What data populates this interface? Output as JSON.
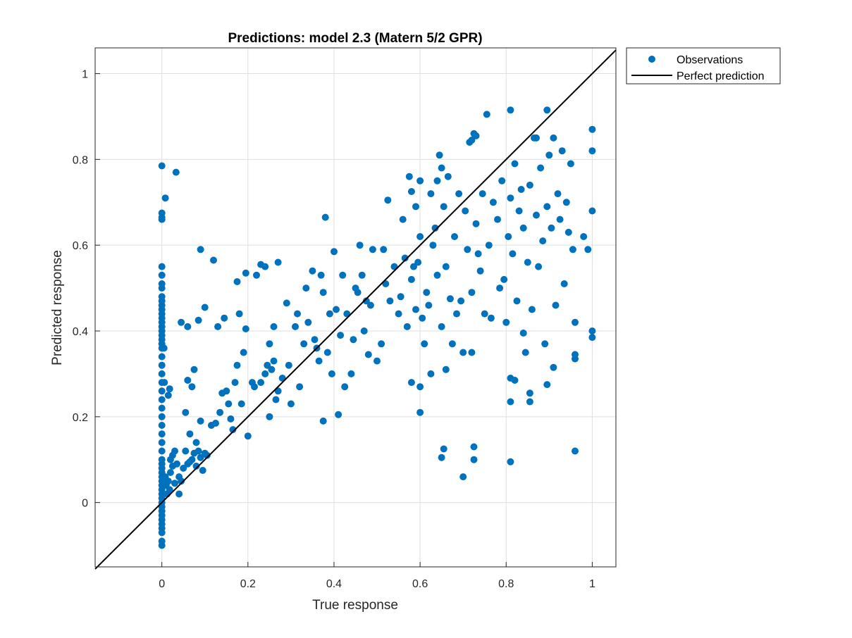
{
  "chart_data": {
    "type": "scatter",
    "title": "Predictions: model 2.3 (Matern 5/2 GPR)",
    "xlabel": "True response",
    "ylabel": "Predicted response",
    "xlim": [
      -0.155,
      1.055
    ],
    "ylim": [
      -0.15,
      1.06
    ],
    "xticks": [
      "0",
      "0.2",
      "0.4",
      "0.6",
      "0.8",
      "1"
    ],
    "yticks": [
      "0",
      "0.2",
      "0.4",
      "0.6",
      "0.8",
      "1"
    ],
    "grid": true,
    "legend_position": "outside-top-right",
    "colors": {
      "observations": "#0072BD",
      "perfect_prediction": "#000000"
    },
    "series": [
      {
        "name": "Observations",
        "kind": "scatter",
        "points": [
          [
            0,
            0.785
          ],
          [
            0,
            0.675
          ],
          [
            0,
            0.665
          ],
          [
            0,
            0.66
          ],
          [
            0.008,
            0.71
          ],
          [
            0.033,
            0.77
          ],
          [
            0,
            0.55
          ],
          [
            0,
            0.53
          ],
          [
            0,
            0.51
          ],
          [
            0,
            0.5
          ],
          [
            0,
            0.48
          ],
          [
            0,
            0.47
          ],
          [
            0,
            0.46
          ],
          [
            0,
            0.45
          ],
          [
            0,
            0.44
          ],
          [
            0,
            0.43
          ],
          [
            0,
            0.42
          ],
          [
            0,
            0.41
          ],
          [
            0,
            0.4
          ],
          [
            0,
            0.39
          ],
          [
            0,
            0.38
          ],
          [
            0,
            0.37
          ],
          [
            0,
            0.36
          ],
          [
            0,
            0.34
          ],
          [
            0,
            0.32
          ],
          [
            0,
            0.3
          ],
          [
            0,
            0.28
          ],
          [
            0,
            0.26
          ],
          [
            0,
            0.24
          ],
          [
            0,
            0.22
          ],
          [
            0,
            0.2
          ],
          [
            0,
            0.18
          ],
          [
            0,
            0.16
          ],
          [
            0,
            0.14
          ],
          [
            0,
            0.12
          ],
          [
            0,
            0.1
          ],
          [
            0,
            0.09
          ],
          [
            0,
            0.08
          ],
          [
            0,
            0.07
          ],
          [
            0,
            0.06
          ],
          [
            0,
            0.05
          ],
          [
            0,
            0.04
          ],
          [
            0,
            0.03
          ],
          [
            0,
            0.02
          ],
          [
            0,
            0.01
          ],
          [
            0,
            0.0
          ],
          [
            0,
            -0.01
          ],
          [
            0,
            -0.02
          ],
          [
            0,
            -0.03
          ],
          [
            0,
            -0.04
          ],
          [
            0,
            -0.05
          ],
          [
            0,
            -0.06
          ],
          [
            0,
            -0.07
          ],
          [
            0,
            -0.09
          ],
          [
            0,
            -0.1
          ],
          [
            0.005,
            0.36
          ],
          [
            0.006,
            0.28
          ],
          [
            0.008,
            0.06
          ],
          [
            0.01,
            0.04
          ],
          [
            0.012,
            0.02
          ],
          [
            0.015,
            0.05
          ],
          [
            0.018,
            0.03
          ],
          [
            0.02,
            0.07
          ],
          [
            0.015,
            0.25
          ],
          [
            0.018,
            0.265
          ],
          [
            0.02,
            0.1
          ],
          [
            0.025,
            0.11
          ],
          [
            0.03,
            0.12
          ],
          [
            0.035,
            0.09
          ],
          [
            0.04,
            0.06
          ],
          [
            0.045,
            0.05
          ],
          [
            0.05,
            0.08
          ],
          [
            0.055,
            0.12
          ],
          [
            0.06,
            0.09
          ],
          [
            0.065,
            0.095
          ],
          [
            0.07,
            0.1
          ],
          [
            0.075,
            0.115
          ],
          [
            0.08,
            0.085
          ],
          [
            0.085,
            0.12
          ],
          [
            0.09,
            0.105
          ],
          [
            0.095,
            0.075
          ],
          [
            0.1,
            0.115
          ],
          [
            0.105,
            0.11
          ],
          [
            0.025,
            0.085
          ],
          [
            0.03,
            0.045
          ],
          [
            0.04,
            0.02
          ],
          [
            0.045,
            0.42
          ],
          [
            0.06,
            0.41
          ],
          [
            0.085,
            0.425
          ],
          [
            0.1,
            0.455
          ],
          [
            0.09,
            0.59
          ],
          [
            0.12,
            0.565
          ],
          [
            0.075,
            0.31
          ],
          [
            0.06,
            0.285
          ],
          [
            0.07,
            0.27
          ],
          [
            0.055,
            0.21
          ],
          [
            0.065,
            0.16
          ],
          [
            0.08,
            0.14
          ],
          [
            0.09,
            0.19
          ],
          [
            0.115,
            0.18
          ],
          [
            0.125,
            0.185
          ],
          [
            0.135,
            0.21
          ],
          [
            0.14,
            0.255
          ],
          [
            0.145,
            0.43
          ],
          [
            0.13,
            0.41
          ],
          [
            0.15,
            0.26
          ],
          [
            0.155,
            0.23
          ],
          [
            0.16,
            0.195
          ],
          [
            0.165,
            0.17
          ],
          [
            0.17,
            0.28
          ],
          [
            0.175,
            0.32
          ],
          [
            0.18,
            0.44
          ],
          [
            0.185,
            0.23
          ],
          [
            0.19,
            0.35
          ],
          [
            0.195,
            0.405
          ],
          [
            0.2,
            0.155
          ],
          [
            0.21,
            0.28
          ],
          [
            0.215,
            0.27
          ],
          [
            0.22,
            0.53
          ],
          [
            0.23,
            0.555
          ],
          [
            0.24,
            0.55
          ],
          [
            0.25,
            0.37
          ],
          [
            0.255,
            0.31
          ],
          [
            0.26,
            0.41
          ],
          [
            0.27,
            0.56
          ],
          [
            0.175,
            0.515
          ],
          [
            0.195,
            0.535
          ],
          [
            0.23,
            0.28
          ],
          [
            0.24,
            0.3
          ],
          [
            0.245,
            0.32
          ],
          [
            0.25,
            0.2
          ],
          [
            0.26,
            0.33
          ],
          [
            0.265,
            0.24
          ],
          [
            0.27,
            0.26
          ],
          [
            0.28,
            0.29
          ],
          [
            0.29,
            0.465
          ],
          [
            0.295,
            0.32
          ],
          [
            0.3,
            0.23
          ],
          [
            0.31,
            0.41
          ],
          [
            0.315,
            0.44
          ],
          [
            0.32,
            0.27
          ],
          [
            0.33,
            0.37
          ],
          [
            0.335,
            0.5
          ],
          [
            0.34,
            0.42
          ],
          [
            0.35,
            0.54
          ],
          [
            0.355,
            0.38
          ],
          [
            0.36,
            0.36
          ],
          [
            0.365,
            0.33
          ],
          [
            0.37,
            0.53
          ],
          [
            0.375,
            0.49
          ],
          [
            0.38,
            0.665
          ],
          [
            0.385,
            0.35
          ],
          [
            0.39,
            0.44
          ],
          [
            0.395,
            0.3
          ],
          [
            0.4,
            0.585
          ],
          [
            0.405,
            0.45
          ],
          [
            0.41,
            0.205
          ],
          [
            0.415,
            0.39
          ],
          [
            0.42,
            0.53
          ],
          [
            0.425,
            0.27
          ],
          [
            0.43,
            0.44
          ],
          [
            0.44,
            0.3
          ],
          [
            0.445,
            0.38
          ],
          [
            0.45,
            0.5
          ],
          [
            0.455,
            0.49
          ],
          [
            0.46,
            0.6
          ],
          [
            0.465,
            0.53
          ],
          [
            0.47,
            0.4
          ],
          [
            0.475,
            0.47
          ],
          [
            0.48,
            0.345
          ],
          [
            0.485,
            0.46
          ],
          [
            0.49,
            0.59
          ],
          [
            0.375,
            0.19
          ],
          [
            0.5,
            0.33
          ],
          [
            0.51,
            0.37
          ],
          [
            0.515,
            0.59
          ],
          [
            0.52,
            0.51
          ],
          [
            0.525,
            0.705
          ],
          [
            0.53,
            0.47
          ],
          [
            0.54,
            0.55
          ],
          [
            0.55,
            0.44
          ],
          [
            0.555,
            0.48
          ],
          [
            0.56,
            0.66
          ],
          [
            0.565,
            0.57
          ],
          [
            0.57,
            0.41
          ],
          [
            0.575,
            0.76
          ],
          [
            0.58,
            0.52
          ],
          [
            0.585,
            0.55
          ],
          [
            0.59,
            0.45
          ],
          [
            0.595,
            0.56
          ],
          [
            0.6,
            0.27
          ],
          [
            0.6,
            0.21
          ],
          [
            0.605,
            0.43
          ],
          [
            0.61,
            0.37
          ],
          [
            0.615,
            0.49
          ],
          [
            0.62,
            0.46
          ],
          [
            0.625,
            0.72
          ],
          [
            0.63,
            0.6
          ],
          [
            0.635,
            0.64
          ],
          [
            0.64,
            0.53
          ],
          [
            0.645,
            0.81
          ],
          [
            0.65,
            0.78
          ],
          [
            0.65,
            0.41
          ],
          [
            0.655,
            0.69
          ],
          [
            0.66,
            0.55
          ],
          [
            0.665,
            0.76
          ],
          [
            0.67,
            0.475
          ],
          [
            0.675,
            0.37
          ],
          [
            0.68,
            0.62
          ],
          [
            0.685,
            0.44
          ],
          [
            0.69,
            0.72
          ],
          [
            0.695,
            0.47
          ],
          [
            0.7,
            0.35
          ],
          [
            0.705,
            0.68
          ],
          [
            0.71,
            0.59
          ],
          [
            0.715,
            0.84
          ],
          [
            0.72,
            0.49
          ],
          [
            0.725,
            0.86
          ],
          [
            0.73,
            0.65
          ],
          [
            0.735,
            0.58
          ],
          [
            0.74,
            0.54
          ],
          [
            0.745,
            0.72
          ],
          [
            0.75,
            0.44
          ],
          [
            0.755,
            0.905
          ],
          [
            0.76,
            0.6
          ],
          [
            0.765,
            0.43
          ],
          [
            0.77,
            0.7
          ],
          [
            0.78,
            0.66
          ],
          [
            0.785,
            0.5
          ],
          [
            0.79,
            0.75
          ],
          [
            0.795,
            0.52
          ],
          [
            0.8,
            0.42
          ],
          [
            0.805,
            0.62
          ],
          [
            0.81,
            0.71
          ],
          [
            0.815,
            0.58
          ],
          [
            0.82,
            0.79
          ],
          [
            0.825,
            0.47
          ],
          [
            0.83,
            0.68
          ],
          [
            0.835,
            0.73
          ],
          [
            0.84,
            0.64
          ],
          [
            0.845,
            0.35
          ],
          [
            0.85,
            0.56
          ],
          [
            0.855,
            0.74
          ],
          [
            0.86,
            0.45
          ],
          [
            0.865,
            0.85
          ],
          [
            0.87,
            0.67
          ],
          [
            0.875,
            0.55
          ],
          [
            0.88,
            0.78
          ],
          [
            0.885,
            0.61
          ],
          [
            0.89,
            0.37
          ],
          [
            0.895,
            0.69
          ],
          [
            0.9,
            0.81
          ],
          [
            0.905,
            0.64
          ],
          [
            0.91,
            0.85
          ],
          [
            0.915,
            0.46
          ],
          [
            0.92,
            0.72
          ],
          [
            0.925,
            0.66
          ],
          [
            0.93,
            0.82
          ],
          [
            0.935,
            0.51
          ],
          [
            0.94,
            0.7
          ],
          [
            0.945,
            0.63
          ],
          [
            0.95,
            0.79
          ],
          [
            0.955,
            0.59
          ],
          [
            0.96,
            0.42
          ],
          [
            0.98,
            0.62
          ],
          [
            0.99,
            0.59
          ],
          [
            1.0,
            0.87
          ],
          [
            1.0,
            0.82
          ],
          [
            1.0,
            0.68
          ],
          [
            1.0,
            0.4
          ],
          [
            1.0,
            0.385
          ],
          [
            0.81,
            0.915
          ],
          [
            0.895,
            0.915
          ],
          [
            0.72,
            0.845
          ],
          [
            0.87,
            0.85
          ],
          [
            0.73,
            0.855
          ],
          [
            0.64,
            0.75
          ],
          [
            0.6,
            0.62
          ],
          [
            0.59,
            0.69
          ],
          [
            0.58,
            0.725
          ],
          [
            0.6,
            0.75
          ],
          [
            0.58,
            0.28
          ],
          [
            0.625,
            0.3
          ],
          [
            0.66,
            0.31
          ],
          [
            0.72,
            0.35
          ],
          [
            0.81,
            0.29
          ],
          [
            0.82,
            0.285
          ],
          [
            0.84,
            0.395
          ],
          [
            0.855,
            0.255
          ],
          [
            0.855,
            0.235
          ],
          [
            0.81,
            0.235
          ],
          [
            0.895,
            0.275
          ],
          [
            0.91,
            0.315
          ],
          [
            0.96,
            0.335
          ],
          [
            0.96,
            0.345
          ],
          [
            0.655,
            0.125
          ],
          [
            0.65,
            0.105
          ],
          [
            0.725,
            0.13
          ],
          [
            0.725,
            0.1
          ],
          [
            0.7,
            0.06
          ],
          [
            0.81,
            0.095
          ],
          [
            0.96,
            0.12
          ]
        ]
      },
      {
        "name": "Perfect prediction",
        "kind": "line",
        "points": [
          [
            -0.155,
            -0.155
          ],
          [
            1.055,
            1.055
          ]
        ]
      }
    ]
  }
}
